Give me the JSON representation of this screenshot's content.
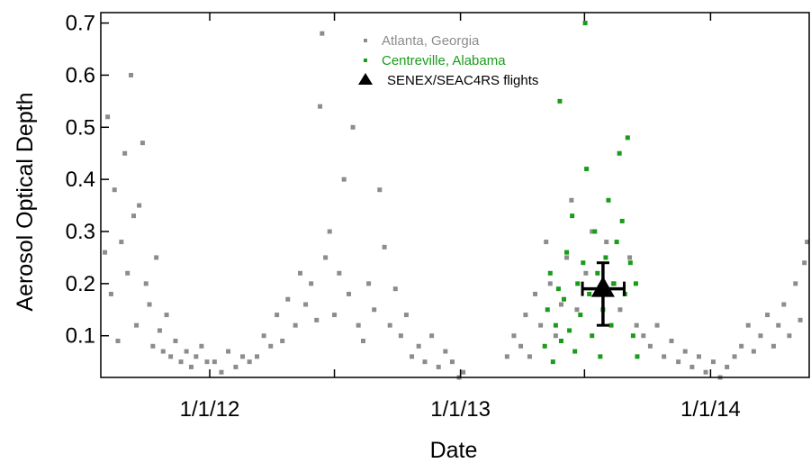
{
  "chart_data": {
    "type": "scatter",
    "xlabel": "Date",
    "ylabel": "Aerosol Optical Depth",
    "x_range": [
      "2011-07-26",
      "2014-05-25"
    ],
    "ylim": [
      0.02,
      0.72
    ],
    "x_ticks": [
      {
        "date": "2012-01-01",
        "label": "1/1/12"
      },
      {
        "date": "2013-01-01",
        "label": "1/1/13"
      },
      {
        "date": "2014-01-01",
        "label": "1/1/14"
      }
    ],
    "x_minor_ticks": [
      "2012-07-01",
      "2013-07-01"
    ],
    "y_ticks": [
      {
        "value": 0.1,
        "label": "0.1"
      },
      {
        "value": 0.2,
        "label": "0.2"
      },
      {
        "value": 0.3,
        "label": "0.3"
      },
      {
        "value": 0.4,
        "label": "0.4"
      },
      {
        "value": 0.5,
        "label": "0.5"
      },
      {
        "value": 0.6,
        "label": "0.6"
      },
      {
        "value": 0.7,
        "label": "0.7"
      }
    ],
    "grid": false,
    "legend_position": "top-center",
    "series": [
      {
        "name": "Atlanta, Georgia",
        "color": "#8c8c8c",
        "marker": "square",
        "points": [
          [
            "2011-08-01",
            0.26
          ],
          [
            "2011-08-05",
            0.52
          ],
          [
            "2011-08-10",
            0.18
          ],
          [
            "2011-08-15",
            0.38
          ],
          [
            "2011-08-20",
            0.09
          ],
          [
            "2011-08-25",
            0.28
          ],
          [
            "2011-08-30",
            0.45
          ],
          [
            "2011-09-03",
            0.22
          ],
          [
            "2011-09-08",
            0.6
          ],
          [
            "2011-09-12",
            0.33
          ],
          [
            "2011-09-16",
            0.12
          ],
          [
            "2011-09-20",
            0.35
          ],
          [
            "2011-09-25",
            0.47
          ],
          [
            "2011-09-30",
            0.2
          ],
          [
            "2011-10-05",
            0.16
          ],
          [
            "2011-10-10",
            0.08
          ],
          [
            "2011-10-15",
            0.25
          ],
          [
            "2011-10-20",
            0.11
          ],
          [
            "2011-10-25",
            0.07
          ],
          [
            "2011-10-30",
            0.14
          ],
          [
            "2011-11-05",
            0.06
          ],
          [
            "2011-11-12",
            0.09
          ],
          [
            "2011-11-20",
            0.05
          ],
          [
            "2011-11-28",
            0.07
          ],
          [
            "2011-12-05",
            0.04
          ],
          [
            "2011-12-12",
            0.06
          ],
          [
            "2011-12-20",
            0.08
          ],
          [
            "2011-12-28",
            0.05
          ],
          [
            "2012-01-08",
            0.05
          ],
          [
            "2012-01-18",
            0.03
          ],
          [
            "2012-01-28",
            0.07
          ],
          [
            "2012-02-08",
            0.04
          ],
          [
            "2012-02-18",
            0.06
          ],
          [
            "2012-02-28",
            0.05
          ],
          [
            "2012-03-10",
            0.06
          ],
          [
            "2012-03-20",
            0.1
          ],
          [
            "2012-03-30",
            0.08
          ],
          [
            "2012-04-08",
            0.14
          ],
          [
            "2012-04-16",
            0.09
          ],
          [
            "2012-04-24",
            0.17
          ],
          [
            "2012-05-05",
            0.12
          ],
          [
            "2012-05-12",
            0.22
          ],
          [
            "2012-05-20",
            0.16
          ],
          [
            "2012-05-28",
            0.2
          ],
          [
            "2012-06-05",
            0.13
          ],
          [
            "2012-06-10",
            0.54
          ],
          [
            "2012-06-13",
            0.68
          ],
          [
            "2012-06-18",
            0.25
          ],
          [
            "2012-06-24",
            0.3
          ],
          [
            "2012-07-01",
            0.14
          ],
          [
            "2012-07-08",
            0.22
          ],
          [
            "2012-07-15",
            0.4
          ],
          [
            "2012-07-22",
            0.18
          ],
          [
            "2012-07-28",
            0.5
          ],
          [
            "2012-08-05",
            0.12
          ],
          [
            "2012-08-12",
            0.09
          ],
          [
            "2012-08-20",
            0.2
          ],
          [
            "2012-08-28",
            0.15
          ],
          [
            "2012-09-05",
            0.38
          ],
          [
            "2012-09-12",
            0.27
          ],
          [
            "2012-09-20",
            0.12
          ],
          [
            "2012-09-28",
            0.19
          ],
          [
            "2012-10-06",
            0.1
          ],
          [
            "2012-10-14",
            0.14
          ],
          [
            "2012-10-22",
            0.06
          ],
          [
            "2012-11-01",
            0.08
          ],
          [
            "2012-11-10",
            0.05
          ],
          [
            "2012-11-20",
            0.1
          ],
          [
            "2012-11-30",
            0.04
          ],
          [
            "2012-12-10",
            0.07
          ],
          [
            "2012-12-20",
            0.05
          ],
          [
            "2012-12-30",
            0.02
          ],
          [
            "2013-01-05",
            0.03
          ],
          [
            "2013-03-10",
            0.06
          ],
          [
            "2013-03-20",
            0.1
          ],
          [
            "2013-03-30",
            0.08
          ],
          [
            "2013-04-06",
            0.14
          ],
          [
            "2013-04-12",
            0.06
          ],
          [
            "2013-04-20",
            0.18
          ],
          [
            "2013-04-28",
            0.12
          ],
          [
            "2013-05-06",
            0.28
          ],
          [
            "2013-05-12",
            0.2
          ],
          [
            "2013-05-20",
            0.1
          ],
          [
            "2013-05-28",
            0.16
          ],
          [
            "2013-06-05",
            0.25
          ],
          [
            "2013-06-12",
            0.36
          ],
          [
            "2013-06-20",
            0.15
          ],
          [
            "2013-07-03",
            0.22
          ],
          [
            "2013-07-12",
            0.3
          ],
          [
            "2013-07-22",
            0.18
          ],
          [
            "2013-08-02",
            0.28
          ],
          [
            "2013-08-12",
            0.2
          ],
          [
            "2013-08-22",
            0.15
          ],
          [
            "2013-09-05",
            0.25
          ],
          [
            "2013-09-15",
            0.12
          ],
          [
            "2013-09-25",
            0.1
          ],
          [
            "2013-10-05",
            0.08
          ],
          [
            "2013-10-15",
            0.12
          ],
          [
            "2013-10-25",
            0.06
          ],
          [
            "2013-11-05",
            0.09
          ],
          [
            "2013-11-15",
            0.05
          ],
          [
            "2013-11-25",
            0.07
          ],
          [
            "2013-12-05",
            0.04
          ],
          [
            "2013-12-15",
            0.06
          ],
          [
            "2013-12-25",
            0.03
          ],
          [
            "2014-01-05",
            0.05
          ],
          [
            "2014-01-15",
            0.02
          ],
          [
            "2014-01-25",
            0.04
          ],
          [
            "2014-02-05",
            0.06
          ],
          [
            "2014-02-15",
            0.08
          ],
          [
            "2014-02-25",
            0.12
          ],
          [
            "2014-03-05",
            0.07
          ],
          [
            "2014-03-15",
            0.1
          ],
          [
            "2014-03-25",
            0.14
          ],
          [
            "2014-04-03",
            0.08
          ],
          [
            "2014-04-10",
            0.12
          ],
          [
            "2014-04-18",
            0.16
          ],
          [
            "2014-04-26",
            0.1
          ],
          [
            "2014-05-05",
            0.2
          ],
          [
            "2014-05-12",
            0.13
          ],
          [
            "2014-05-18",
            0.24
          ],
          [
            "2014-05-22",
            0.28
          ]
        ]
      },
      {
        "name": "Centreville, Alabama",
        "color": "#1a9b1a",
        "marker": "square",
        "points": [
          [
            "2013-05-04",
            0.08
          ],
          [
            "2013-05-08",
            0.15
          ],
          [
            "2013-05-12",
            0.22
          ],
          [
            "2013-05-16",
            0.05
          ],
          [
            "2013-05-20",
            0.12
          ],
          [
            "2013-05-24",
            0.19
          ],
          [
            "2013-05-26",
            0.55
          ],
          [
            "2013-05-28",
            0.09
          ],
          [
            "2013-06-01",
            0.17
          ],
          [
            "2013-06-05",
            0.26
          ],
          [
            "2013-06-09",
            0.11
          ],
          [
            "2013-06-13",
            0.33
          ],
          [
            "2013-06-17",
            0.07
          ],
          [
            "2013-06-21",
            0.2
          ],
          [
            "2013-06-25",
            0.14
          ],
          [
            "2013-06-29",
            0.24
          ],
          [
            "2013-07-02",
            0.7
          ],
          [
            "2013-07-04",
            0.42
          ],
          [
            "2013-07-08",
            0.18
          ],
          [
            "2013-07-12",
            0.1
          ],
          [
            "2013-07-16",
            0.3
          ],
          [
            "2013-07-20",
            0.22
          ],
          [
            "2013-07-24",
            0.06
          ],
          [
            "2013-07-28",
            0.15
          ],
          [
            "2013-08-01",
            0.25
          ],
          [
            "2013-08-05",
            0.36
          ],
          [
            "2013-08-09",
            0.12
          ],
          [
            "2013-08-13",
            0.2
          ],
          [
            "2013-08-17",
            0.28
          ],
          [
            "2013-08-21",
            0.45
          ],
          [
            "2013-08-25",
            0.32
          ],
          [
            "2013-08-29",
            0.18
          ],
          [
            "2013-09-02",
            0.48
          ],
          [
            "2013-09-06",
            0.24
          ],
          [
            "2013-09-10",
            0.1
          ],
          [
            "2013-09-14",
            0.2
          ],
          [
            "2013-09-16",
            0.06
          ]
        ]
      },
      {
        "name": "SENEX/SEAC4RS flights",
        "color": "#000000",
        "marker": "triangle",
        "points": [
          [
            "2013-07-28",
            0.19
          ]
        ],
        "x_error": [
          "2013-06-28",
          "2013-08-28"
        ],
        "y_error": [
          0.12,
          0.24
        ]
      }
    ]
  }
}
